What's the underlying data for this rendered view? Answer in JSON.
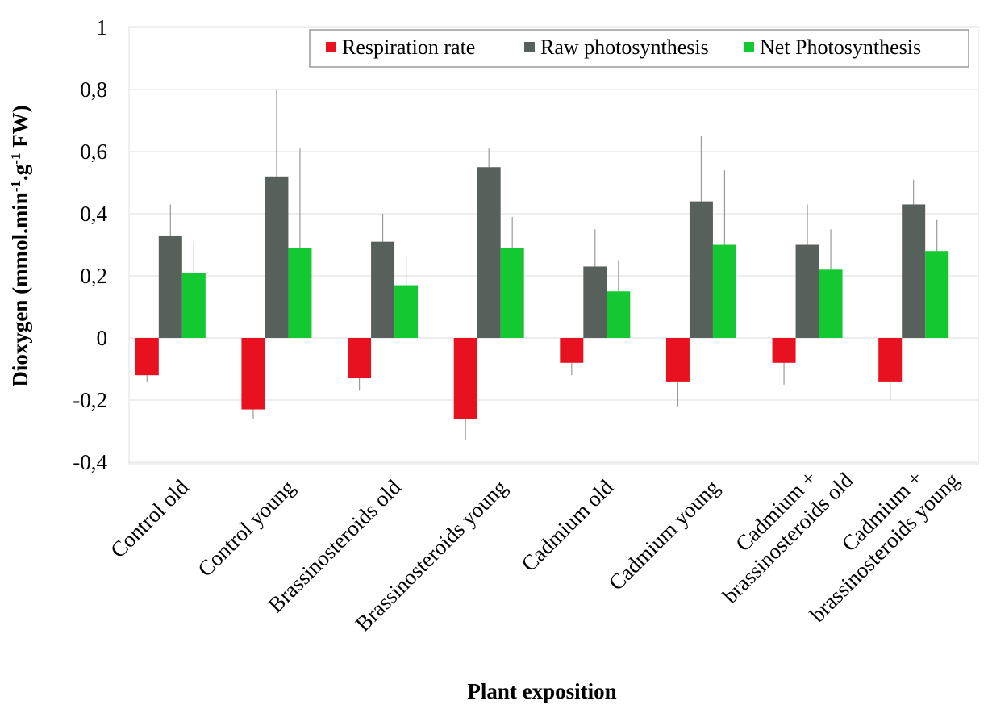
{
  "chart_data": {
    "type": "bar",
    "title": "",
    "xlabel": "Plant exposition",
    "ylabel": "Dioxygen (mmol.min-1.g-1 FW)",
    "ylabel_parts": [
      "Dioxygen (mmol.min",
      "-1",
      ".g",
      "-1",
      " FW)"
    ],
    "ylim": [
      -0.4,
      1
    ],
    "yticks": [
      -0.4,
      -0.2,
      0,
      0.2,
      0.4,
      0.6,
      0.8,
      1
    ],
    "ytick_labels": [
      "-0,4",
      "-0,2",
      "0",
      "0,2",
      "0,4",
      "0,6",
      "0,8",
      "1"
    ],
    "grid": true,
    "legend_position": "top-right",
    "categories": [
      [
        "Control old"
      ],
      [
        "Control young"
      ],
      [
        "Brassinosteroids old"
      ],
      [
        "Brassinosteroids young"
      ],
      [
        "Cadmium old"
      ],
      [
        "Cadmium young"
      ],
      [
        "Cadmium +",
        "brassinosteroids  old"
      ],
      [
        "Cadmium +",
        "brassinosteroids  young"
      ]
    ],
    "series": [
      {
        "name": "Respiration rate",
        "color": "#e8111f",
        "values": [
          -0.12,
          -0.23,
          -0.13,
          -0.26,
          -0.08,
          -0.14,
          -0.08,
          -0.14
        ],
        "errors": [
          0.02,
          0.03,
          0.04,
          0.07,
          0.04,
          0.08,
          0.07,
          0.06
        ]
      },
      {
        "name": "Raw photosynthesis",
        "color": "#57605a",
        "values": [
          0.33,
          0.52,
          0.31,
          0.55,
          0.23,
          0.44,
          0.3,
          0.43
        ],
        "errors": [
          0.1,
          0.28,
          0.09,
          0.06,
          0.12,
          0.21,
          0.13,
          0.08
        ]
      },
      {
        "name": "Net Photosynthesis",
        "color": "#14c832",
        "values": [
          0.21,
          0.29,
          0.17,
          0.29,
          0.15,
          0.3,
          0.22,
          0.28
        ],
        "errors": [
          0.1,
          0.32,
          0.09,
          0.1,
          0.1,
          0.24,
          0.13,
          0.1
        ]
      }
    ]
  }
}
